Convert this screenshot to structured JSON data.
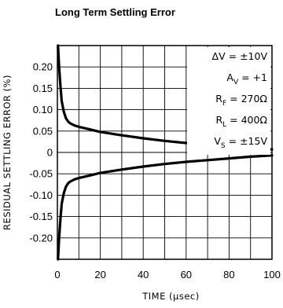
{
  "chart_data": {
    "type": "line",
    "title": "Long Term Settling Error",
    "xlabel": "TIME (μsec)",
    "ylabel": "RESIDUAL SETTLING ERROR (%)",
    "xlim": [
      0,
      100
    ],
    "ylim": [
      -0.25,
      0.25
    ],
    "grid": true,
    "x_ticks": [
      "0",
      "20",
      "40",
      "60",
      "80",
      "100"
    ],
    "y_ticks": [
      "0.20",
      "0.15",
      "0.10",
      "0.05",
      "0",
      "-0.05",
      "-0.10",
      "-0.15",
      "-0.20"
    ],
    "series": [
      {
        "x": [
          0.3,
          0.8,
          1.5,
          2,
          3,
          4,
          5,
          6,
          8,
          10,
          15,
          20,
          30,
          40,
          50,
          60,
          70,
          80,
          90,
          100
        ],
        "y": [
          0.25,
          0.2,
          0.15,
          0.12,
          0.095,
          0.08,
          0.072,
          0.068,
          0.063,
          0.06,
          0.054,
          0.048,
          0.04,
          0.033,
          0.027,
          0.022,
          0.018,
          0.014,
          0.01,
          0.007
        ]
      },
      {
        "x": [
          0.3,
          0.8,
          1.5,
          2,
          3,
          4,
          5,
          6,
          8,
          10,
          15,
          20,
          30,
          40,
          50,
          60,
          70,
          80,
          90,
          100
        ],
        "y": [
          -0.25,
          -0.2,
          -0.15,
          -0.12,
          -0.095,
          -0.08,
          -0.072,
          -0.068,
          -0.063,
          -0.06,
          -0.054,
          -0.048,
          -0.04,
          -0.033,
          -0.027,
          -0.022,
          -0.018,
          -0.014,
          -0.01,
          -0.007
        ]
      }
    ],
    "annotations": [
      {
        "main": "ΔV = ±10V",
        "sub": ""
      },
      {
        "main": "A = +1",
        "prefix": "A",
        "sub": "V",
        "rest": " = +1"
      },
      {
        "main": "R = 270Ω",
        "prefix": "R",
        "sub": "F",
        "rest": " = 270Ω"
      },
      {
        "main": "R = 400Ω",
        "prefix": "R",
        "sub": "L",
        "rest": " = 400Ω"
      },
      {
        "main": "V = ±15V",
        "prefix": "V",
        "sub": "S",
        "rest": " = ±15V"
      }
    ]
  }
}
